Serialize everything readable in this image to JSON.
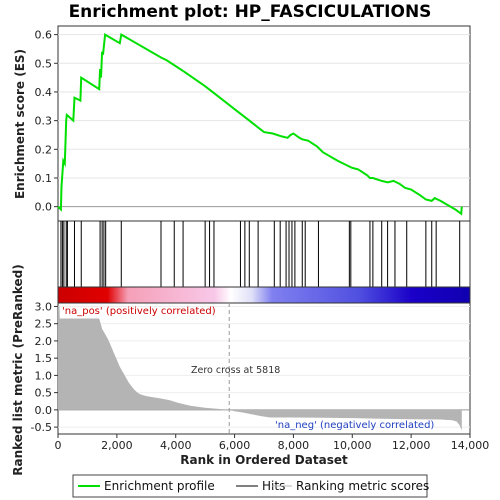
{
  "chart_data": {
    "type": "line",
    "title": "Enrichment plot: HP_FASCICULATIONS",
    "top_panel": {
      "ylabel": "Enrichment score (ES)",
      "ylim": [
        -0.05,
        0.63
      ],
      "yticks": [
        "0.0",
        "0.1",
        "0.2",
        "0.3",
        "0.4",
        "0.5",
        "0.6"
      ],
      "ytick_values": [
        0.0,
        0.1,
        0.2,
        0.3,
        0.4,
        0.5,
        0.6
      ],
      "series": [
        {
          "name": "Enrichment profile",
          "color": "#00e000",
          "x": [
            0,
            100,
            120,
            180,
            230,
            280,
            300,
            520,
            560,
            760,
            790,
            1400,
            1430,
            1460,
            1500,
            1530,
            1600,
            2100,
            2150,
            3500,
            3700,
            4000,
            4300,
            5000,
            5500,
            6000,
            6500,
            7000,
            7300,
            7600,
            7800,
            7900,
            8000,
            8200,
            8300,
            8500,
            8800,
            9000,
            9500,
            9900,
            10000,
            10200,
            10500,
            10600,
            10700,
            11000,
            11200,
            11400,
            11600,
            11800,
            12000,
            12300,
            12500,
            12700,
            12800,
            13000,
            13500,
            13700,
            13720
          ],
          "y": [
            0.0,
            -0.01,
            0.07,
            0.16,
            0.15,
            0.3,
            0.32,
            0.3,
            0.38,
            0.37,
            0.45,
            0.41,
            0.48,
            0.45,
            0.54,
            0.53,
            0.6,
            0.57,
            0.6,
            0.52,
            0.51,
            0.49,
            0.47,
            0.42,
            0.38,
            0.34,
            0.3,
            0.26,
            0.255,
            0.245,
            0.24,
            0.25,
            0.255,
            0.24,
            0.235,
            0.23,
            0.21,
            0.19,
            0.16,
            0.14,
            0.135,
            0.13,
            0.11,
            0.1,
            0.1,
            0.09,
            0.085,
            0.09,
            0.08,
            0.065,
            0.06,
            0.04,
            0.025,
            0.02,
            0.03,
            0.02,
            -0.01,
            -0.025,
            0.0
          ]
        }
      ]
    },
    "hits": {
      "name": "Hits",
      "color": "#000000",
      "x": [
        100,
        150,
        200,
        280,
        320,
        560,
        790,
        1430,
        1500,
        1560,
        1620,
        2150,
        3500,
        3950,
        4250,
        5000,
        5150,
        5300,
        6200,
        6350,
        6500,
        6800,
        7350,
        7550,
        7750,
        7850,
        7950,
        8050,
        8300,
        8400,
        8850,
        9900,
        9950,
        10600,
        10700,
        11000,
        11200,
        11450,
        11850,
        12500,
        12700,
        12850,
        13650
      ]
    },
    "bottom_panel": {
      "name": "Ranking metric scores",
      "color": "#b4b4b4",
      "ylabel": "Ranked list metric (PreRanked)",
      "ylim": [
        -0.7,
        3.1
      ],
      "yticks": [
        "-0.5",
        "0.0",
        "0.5",
        "1.0",
        "1.5",
        "2.0",
        "2.5",
        "3.0"
      ],
      "ytick_values": [
        -0.5,
        0.0,
        0.5,
        1.0,
        1.5,
        2.0,
        2.5,
        3.0
      ],
      "x": [
        0,
        50,
        60,
        1400,
        1450,
        1500,
        1600,
        1700,
        1800,
        1900,
        2000,
        2100,
        2200,
        2300,
        2400,
        2500,
        2600,
        2700,
        2800,
        3000,
        3200,
        3500,
        3800,
        4100,
        4500,
        5000,
        5818,
        6000,
        6300,
        6600,
        6900,
        7200,
        8000,
        9000,
        10000,
        11000,
        12000,
        13000,
        13400,
        13550,
        13650,
        13720
      ],
      "y": [
        3.0,
        3.0,
        2.65,
        2.65,
        2.5,
        2.35,
        2.2,
        2.05,
        1.85,
        1.65,
        1.45,
        1.25,
        1.1,
        0.95,
        0.8,
        0.68,
        0.58,
        0.5,
        0.45,
        0.4,
        0.37,
        0.33,
        0.28,
        0.2,
        0.12,
        0.06,
        0.0,
        -0.04,
        -0.08,
        -0.13,
        -0.18,
        -0.22,
        -0.22,
        -0.23,
        -0.24,
        -0.26,
        -0.27,
        -0.28,
        -0.3,
        -0.34,
        -0.45,
        -0.6
      ]
    },
    "color_bar": {
      "description_colors": [
        "#d40000",
        "#f2a0c8",
        "#ffffff",
        "#9aa0f0",
        "#1a00c8"
      ]
    },
    "xlabel": "Rank in Ordered Dataset",
    "xlim": [
      0,
      14000
    ],
    "xticks": [
      "0",
      "2,000",
      "4,000",
      "6,000",
      "8,000",
      "10,000",
      "12,000",
      "14,000"
    ],
    "xtick_values": [
      0,
      2000,
      4000,
      6000,
      8000,
      10000,
      12000,
      14000
    ],
    "annotations": {
      "pos_label": "'na_pos' (positively correlated)",
      "neg_label": "'na_neg' (negatively correlated)",
      "zero_cross_label": "Zero cross at 5818",
      "zero_cross_x": 5818
    },
    "legend": {
      "placement": "bottom",
      "items": [
        {
          "label": "Enrichment profile",
          "color": "#00e000"
        },
        {
          "label": "Hits",
          "color": "#000000"
        },
        {
          "label": "Ranking metric scores",
          "color": "#b4b4b4"
        }
      ]
    },
    "dataset_length": 13720
  }
}
